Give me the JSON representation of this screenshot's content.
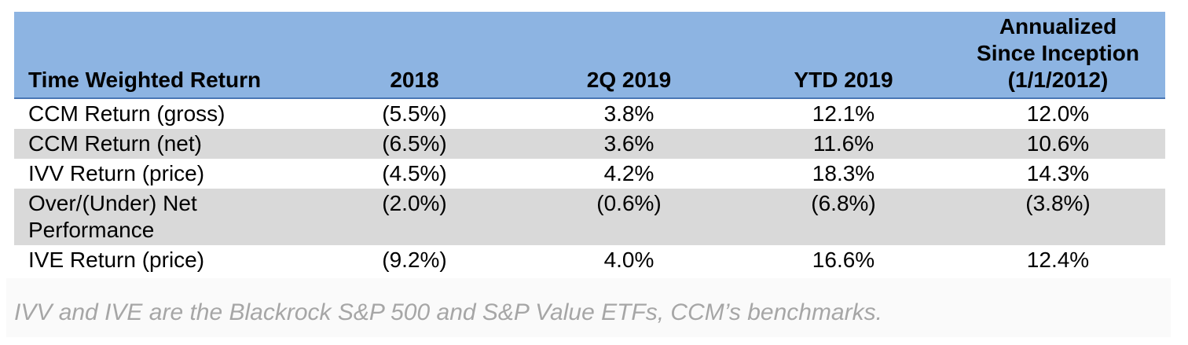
{
  "table": {
    "headers": {
      "label": "Time Weighted Return",
      "col_2018": "2018",
      "col_2q2019": "2Q 2019",
      "col_ytd2019": "YTD 2019",
      "col_annualized": "Annualized\nSince Inception\n(1/1/2012)"
    },
    "rows": [
      {
        "label": "CCM Return (gross)",
        "values": [
          "(5.5%)",
          "3.8%",
          "12.1%",
          "12.0%"
        ]
      },
      {
        "label": "CCM Return (net)",
        "values": [
          "(6.5%)",
          "3.6%",
          "11.6%",
          "10.6%"
        ]
      },
      {
        "label": "IVV Return (price)",
        "values": [
          "(4.5%)",
          "4.2%",
          "18.3%",
          "14.3%"
        ]
      },
      {
        "label": "Over/(Under) Net Performance",
        "values": [
          "(2.0%)",
          "(0.6%)",
          "(6.8%)",
          "(3.8%)"
        ]
      },
      {
        "label": "IVE Return (price)",
        "values": [
          "(9.2%)",
          "4.0%",
          "16.6%",
          "12.4%"
        ]
      }
    ]
  },
  "footnote": "IVV and IVE are the Blackrock S&P 500 and S&P Value ETFs, CCM’s benchmarks.",
  "colors": {
    "header_bg": "#8DB4E2",
    "shaded_row_bg": "#D9D9D9",
    "text": "#000000",
    "footnote_text": "#A6A6A6",
    "footnote_bg": "#FAFAFA",
    "header_border": "#4a77b5"
  }
}
